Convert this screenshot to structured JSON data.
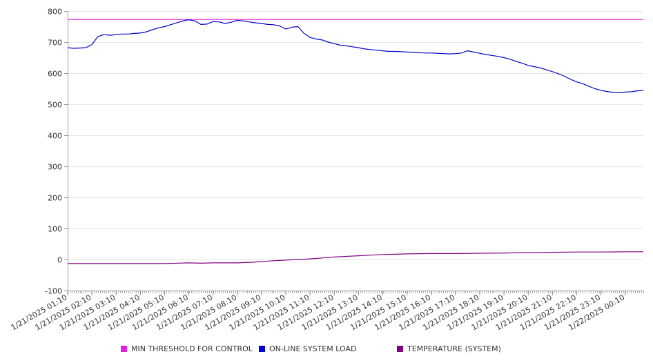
{
  "chart_data": {
    "type": "line",
    "title": "",
    "xlabel": "",
    "ylabel": "",
    "ylim": [
      -100,
      800
    ],
    "yticks": [
      -100,
      0,
      100,
      200,
      300,
      400,
      500,
      600,
      700,
      800
    ],
    "x_range": [
      "1/21/2025 01:10",
      "1/22/2025 00:55"
    ],
    "xtick_labels": [
      "1/21/2025 01:10",
      "1/21/2025 02:10",
      "1/21/2025 03:10",
      "1/21/2025 04:10",
      "1/21/2025 05:10",
      "1/21/2025 06:10",
      "1/21/2025 07:10",
      "1/21/2025 08:10",
      "1/21/2025 09:10",
      "1/21/2025 10:10",
      "1/21/2025 11:10",
      "1/21/2025 12:10",
      "1/21/2025 13:10",
      "1/21/2025 14:10",
      "1/21/2025 15:10",
      "1/21/2025 16:10",
      "1/21/2025 17:10",
      "1/21/2025 18:10",
      "1/21/2025 19:10",
      "1/21/2025 20:10",
      "1/21/2025 21:10",
      "1/21/2025 22:10",
      "1/21/2025 23:10",
      "1/22/2025 00:10"
    ],
    "grid": true,
    "legend_position": "bottom",
    "series": [
      {
        "name": "MIN THRESHOLD FOR CONTROL",
        "color": "#e020e0",
        "points": [
          [
            "1/21/2025 01:10",
            773
          ],
          [
            "1/22/2025 00:55",
            773
          ]
        ]
      },
      {
        "name": "ON-LINE SYSTEM LOAD",
        "color": "#0000cc",
        "points": [
          [
            "1/21/2025 01:10",
            682
          ],
          [
            "1/21/2025 01:25",
            680
          ],
          [
            "1/21/2025 01:40",
            681
          ],
          [
            "1/21/2025 01:55",
            682
          ],
          [
            "1/21/2025 02:10",
            692
          ],
          [
            "1/21/2025 02:25",
            718
          ],
          [
            "1/21/2025 02:40",
            724
          ],
          [
            "1/21/2025 02:55",
            722
          ],
          [
            "1/21/2025 03:10",
            724
          ],
          [
            "1/21/2025 03:25",
            726
          ],
          [
            "1/21/2025 03:40",
            726
          ],
          [
            "1/21/2025 03:55",
            728
          ],
          [
            "1/21/2025 04:10",
            729
          ],
          [
            "1/21/2025 04:25",
            733
          ],
          [
            "1/21/2025 04:40",
            740
          ],
          [
            "1/21/2025 04:55",
            746
          ],
          [
            "1/21/2025 05:10",
            750
          ],
          [
            "1/21/2025 05:25",
            756
          ],
          [
            "1/21/2025 05:40",
            762
          ],
          [
            "1/21/2025 05:55",
            768
          ],
          [
            "1/21/2025 06:10",
            772
          ],
          [
            "1/21/2025 06:25",
            768
          ],
          [
            "1/21/2025 06:40",
            757
          ],
          [
            "1/21/2025 06:55",
            758
          ],
          [
            "1/21/2025 07:10",
            766
          ],
          [
            "1/21/2025 07:25",
            765
          ],
          [
            "1/21/2025 07:40",
            760
          ],
          [
            "1/21/2025 07:55",
            764
          ],
          [
            "1/21/2025 08:10",
            770
          ],
          [
            "1/21/2025 08:25",
            768
          ],
          [
            "1/21/2025 08:40",
            765
          ],
          [
            "1/21/2025 08:55",
            762
          ],
          [
            "1/21/2025 09:10",
            760
          ],
          [
            "1/21/2025 09:25",
            757
          ],
          [
            "1/21/2025 09:40",
            756
          ],
          [
            "1/21/2025 09:55",
            752
          ],
          [
            "1/21/2025 10:10",
            742
          ],
          [
            "1/21/2025 10:25",
            748
          ],
          [
            "1/21/2025 10:40",
            750
          ],
          [
            "1/21/2025 10:55",
            728
          ],
          [
            "1/21/2025 11:10",
            715
          ],
          [
            "1/21/2025 11:25",
            710
          ],
          [
            "1/21/2025 11:40",
            707
          ],
          [
            "1/21/2025 11:55",
            700
          ],
          [
            "1/21/2025 12:10",
            695
          ],
          [
            "1/21/2025 12:25",
            690
          ],
          [
            "1/21/2025 12:40",
            688
          ],
          [
            "1/21/2025 12:55",
            685
          ],
          [
            "1/21/2025 13:10",
            682
          ],
          [
            "1/21/2025 13:25",
            678
          ],
          [
            "1/21/2025 13:40",
            676
          ],
          [
            "1/21/2025 13:55",
            674
          ],
          [
            "1/21/2025 14:10",
            672
          ],
          [
            "1/21/2025 14:25",
            670
          ],
          [
            "1/21/2025 14:40",
            670
          ],
          [
            "1/21/2025 14:55",
            669
          ],
          [
            "1/21/2025 15:10",
            668
          ],
          [
            "1/21/2025 15:25",
            667
          ],
          [
            "1/21/2025 15:40",
            666
          ],
          [
            "1/21/2025 15:55",
            665
          ],
          [
            "1/21/2025 16:10",
            665
          ],
          [
            "1/21/2025 16:25",
            664
          ],
          [
            "1/21/2025 16:40",
            663
          ],
          [
            "1/21/2025 16:55",
            662
          ],
          [
            "1/21/2025 17:10",
            663
          ],
          [
            "1/21/2025 17:25",
            665
          ],
          [
            "1/21/2025 17:40",
            672
          ],
          [
            "1/21/2025 17:55",
            668
          ],
          [
            "1/21/2025 18:10",
            664
          ],
          [
            "1/21/2025 18:25",
            660
          ],
          [
            "1/21/2025 18:40",
            657
          ],
          [
            "1/21/2025 18:55",
            654
          ],
          [
            "1/21/2025 19:10",
            650
          ],
          [
            "1/21/2025 19:25",
            645
          ],
          [
            "1/21/2025 19:40",
            638
          ],
          [
            "1/21/2025 19:55",
            632
          ],
          [
            "1/21/2025 20:10",
            625
          ],
          [
            "1/21/2025 20:25",
            621
          ],
          [
            "1/21/2025 20:40",
            617
          ],
          [
            "1/21/2025 20:55",
            611
          ],
          [
            "1/21/2025 21:10",
            605
          ],
          [
            "1/21/2025 21:25",
            598
          ],
          [
            "1/21/2025 21:40",
            590
          ],
          [
            "1/21/2025 21:55",
            580
          ],
          [
            "1/21/2025 22:10",
            572
          ],
          [
            "1/21/2025 22:25",
            566
          ],
          [
            "1/21/2025 22:40",
            558
          ],
          [
            "1/21/2025 22:55",
            550
          ],
          [
            "1/21/2025 23:10",
            545
          ],
          [
            "1/21/2025 23:25",
            541
          ],
          [
            "1/21/2025 23:40",
            538
          ],
          [
            "1/21/2025 23:55",
            537
          ],
          [
            "1/22/2025 00:10",
            539
          ],
          [
            "1/22/2025 00:25",
            540
          ],
          [
            "1/22/2025 00:40",
            543
          ],
          [
            "1/22/2025 00:55",
            544
          ]
        ]
      },
      {
        "name": "TEMPERATURE (SYSTEM)",
        "color": "#800080",
        "points": [
          [
            "1/21/2025 01:10",
            -13
          ],
          [
            "1/21/2025 02:10",
            -13
          ],
          [
            "1/21/2025 03:10",
            -13
          ],
          [
            "1/21/2025 04:10",
            -13
          ],
          [
            "1/21/2025 05:10",
            -13
          ],
          [
            "1/21/2025 06:10",
            -11
          ],
          [
            "1/21/2025 06:40",
            -12
          ],
          [
            "1/21/2025 07:10",
            -11
          ],
          [
            "1/21/2025 08:10",
            -11
          ],
          [
            "1/21/2025 08:40",
            -9
          ],
          [
            "1/21/2025 09:10",
            -7
          ],
          [
            "1/21/2025 09:40",
            -4
          ],
          [
            "1/21/2025 10:10",
            -2
          ],
          [
            "1/21/2025 10:40",
            0
          ],
          [
            "1/21/2025 11:10",
            2
          ],
          [
            "1/21/2025 11:40",
            5
          ],
          [
            "1/21/2025 12:10",
            8
          ],
          [
            "1/21/2025 12:40",
            10
          ],
          [
            "1/21/2025 13:10",
            12
          ],
          [
            "1/21/2025 13:40",
            14
          ],
          [
            "1/21/2025 14:10",
            16
          ],
          [
            "1/21/2025 14:40",
            17
          ],
          [
            "1/21/2025 15:10",
            18
          ],
          [
            "1/21/2025 16:10",
            19
          ],
          [
            "1/21/2025 17:10",
            19
          ],
          [
            "1/21/2025 18:10",
            20
          ],
          [
            "1/21/2025 19:10",
            21
          ],
          [
            "1/21/2025 20:10",
            22
          ],
          [
            "1/21/2025 20:40",
            22
          ],
          [
            "1/21/2025 21:10",
            23
          ],
          [
            "1/21/2025 22:10",
            24
          ],
          [
            "1/21/2025 23:10",
            24
          ],
          [
            "1/22/2025 00:10",
            25
          ],
          [
            "1/22/2025 00:55",
            25
          ]
        ]
      }
    ]
  },
  "legend": {
    "items": [
      {
        "label": "MIN THRESHOLD FOR CONTROL",
        "color": "#e020e0"
      },
      {
        "label": "ON-LINE SYSTEM LOAD",
        "color": "#0000cc"
      },
      {
        "label": "TEMPERATURE (SYSTEM)",
        "color": "#800080"
      }
    ]
  }
}
